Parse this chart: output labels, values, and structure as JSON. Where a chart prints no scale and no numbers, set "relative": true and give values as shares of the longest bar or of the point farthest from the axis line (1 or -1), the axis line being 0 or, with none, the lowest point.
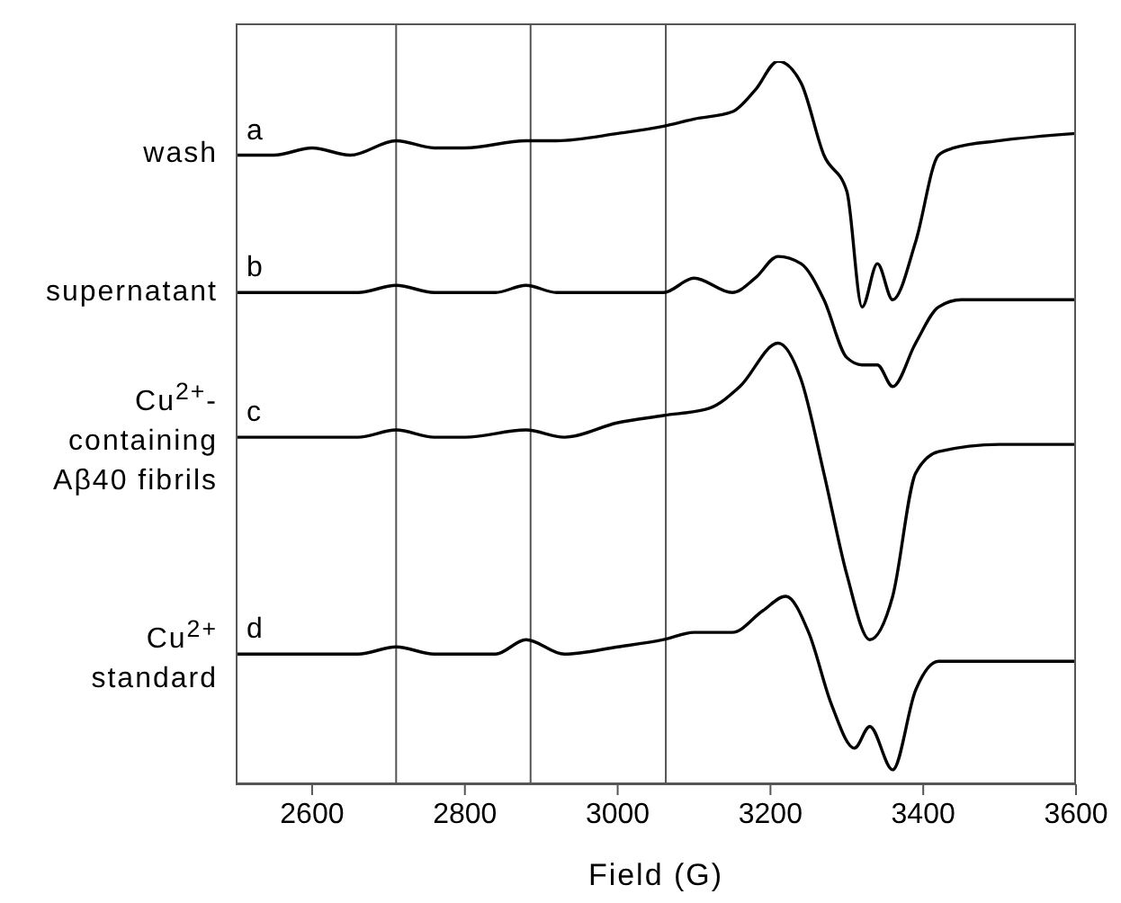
{
  "chart_data": {
    "type": "line",
    "relative": true,
    "xlabel": "Field (G)",
    "xlim": [
      2500,
      3600
    ],
    "xticks": [
      2600,
      2800,
      3000,
      3200,
      3400,
      3600
    ],
    "grid": false,
    "legend": false,
    "marker": "none",
    "line_style": "solid",
    "annotations": [
      "wash",
      "supernatant",
      "Cu$^{2+}$-containing Aβ40 fibrils",
      "Cu$^{2+}$ standard"
    ],
    "ref_lines": [
      {
        "axis": "x",
        "value": 2710,
        "color": "#555555"
      },
      {
        "axis": "x",
        "value": 2886,
        "color": "#555555"
      },
      {
        "axis": "x",
        "value": 3063,
        "color": "#555555"
      }
    ],
    "series": [
      {
        "name": "a",
        "color": "#000000",
        "x": [
          2500,
          2550,
          2600,
          2650,
          2710,
          2760,
          2800,
          2880,
          2920,
          3000,
          3060,
          3100,
          3150,
          3180,
          3210,
          3240,
          3270,
          3300,
          3320,
          3340,
          3360,
          3390,
          3420,
          3440,
          3500,
          3600
        ],
        "values": [
          0.87,
          0.87,
          0.88,
          0.87,
          0.89,
          0.88,
          0.88,
          0.89,
          0.89,
          0.9,
          0.91,
          0.92,
          0.93,
          0.96,
          1.0,
          0.97,
          0.87,
          0.82,
          0.66,
          0.72,
          0.67,
          0.75,
          0.87,
          0.88,
          0.89,
          0.9
        ]
      },
      {
        "name": "b",
        "color": "#000000",
        "x": [
          2500,
          2600,
          2660,
          2710,
          2760,
          2840,
          2880,
          2920,
          3000,
          3060,
          3100,
          3150,
          3180,
          3210,
          3240,
          3270,
          3300,
          3320,
          3340,
          3360,
          3390,
          3420,
          3450,
          3600
        ],
        "values": [
          0.68,
          0.68,
          0.68,
          0.69,
          0.68,
          0.68,
          0.69,
          0.68,
          0.68,
          0.68,
          0.7,
          0.68,
          0.7,
          0.73,
          0.72,
          0.67,
          0.59,
          0.58,
          0.58,
          0.55,
          0.61,
          0.66,
          0.67,
          0.67
        ]
      },
      {
        "name": "c",
        "color": "#000000",
        "x": [
          2500,
          2600,
          2660,
          2710,
          2760,
          2800,
          2880,
          2930,
          3000,
          3060,
          3120,
          3160,
          3210,
          3240,
          3270,
          3300,
          3330,
          3360,
          3390,
          3420,
          3500,
          3600
        ],
        "values": [
          0.48,
          0.48,
          0.48,
          0.49,
          0.48,
          0.48,
          0.49,
          0.48,
          0.5,
          0.51,
          0.52,
          0.55,
          0.61,
          0.56,
          0.43,
          0.29,
          0.2,
          0.26,
          0.43,
          0.46,
          0.47,
          0.47
        ]
      },
      {
        "name": "d",
        "color": "#000000",
        "x": [
          2500,
          2600,
          2660,
          2710,
          2760,
          2840,
          2880,
          2930,
          3000,
          3060,
          3100,
          3150,
          3190,
          3220,
          3250,
          3280,
          3310,
          3330,
          3360,
          3390,
          3420,
          3500,
          3600
        ],
        "values": [
          0.18,
          0.18,
          0.18,
          0.19,
          0.18,
          0.18,
          0.2,
          0.18,
          0.19,
          0.2,
          0.21,
          0.21,
          0.24,
          0.26,
          0.21,
          0.11,
          0.05,
          0.08,
          0.02,
          0.13,
          0.17,
          0.17,
          0.17
        ]
      }
    ]
  }
}
